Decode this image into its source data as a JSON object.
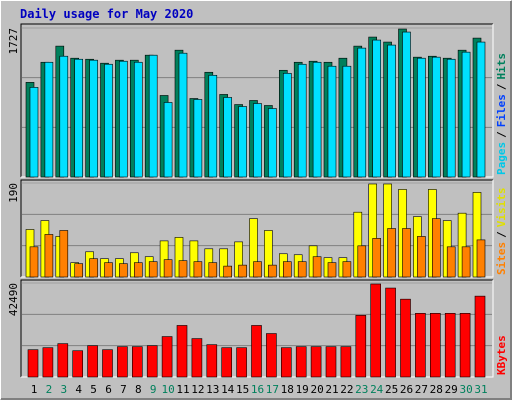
{
  "title": "Daily usage for May 2020",
  "legend_separator": "/",
  "chart_data": [
    {
      "type": "bar",
      "ylim": [
        0,
        1727
      ],
      "yticks": [
        1727
      ],
      "legend": [
        {
          "name": "Pages",
          "color": "#00c8e8"
        },
        {
          "name": "Files",
          "color": "#0040ff"
        },
        {
          "name": "Hits",
          "color": "#00805c"
        }
      ],
      "series": [
        {
          "name": "Hits",
          "color": "#00805c",
          "values": [
            1097,
            1330,
            1517,
            1377,
            1365,
            1319,
            1354,
            1354,
            1412,
            945,
            1470,
            910,
            1214,
            957,
            840,
            887,
            829,
            1237,
            1330,
            1342,
            1330,
            1377,
            1517,
            1622,
            1564,
            1715,
            1389,
            1400,
            1377,
            1470,
            1610
          ]
        },
        {
          "name": "Pages",
          "color": "#00e0ff",
          "values": [
            1039,
            1330,
            1400,
            1365,
            1354,
            1307,
            1342,
            1330,
            1412,
            864,
            1435,
            899,
            1179,
            922,
            817,
            852,
            794,
            1202,
            1307,
            1330,
            1284,
            1284,
            1494,
            1587,
            1529,
            1680,
            1377,
            1389,
            1365,
            1447,
            1564
          ]
        }
      ]
    },
    {
      "type": "bar",
      "ylim": [
        0,
        190
      ],
      "yticks": [
        190
      ],
      "legend": [
        {
          "name": "Sites",
          "color": "#ff8000"
        },
        {
          "name": "Visits",
          "color": "#e0e000"
        }
      ],
      "series": [
        {
          "name": "Visits",
          "color": "#ffff00",
          "values": [
            96,
            114,
            82,
            29,
            51,
            37,
            37,
            49,
            41,
            73,
            80,
            73,
            57,
            57,
            71,
            118,
            94,
            47,
            45,
            63,
            39,
            39,
            131,
            188,
            188,
            177,
            122,
            177,
            114,
            129,
            171
          ]
        },
        {
          "name": "Sites",
          "color": "#ff8000",
          "values": [
            61,
            86,
            94,
            27,
            37,
            29,
            27,
            29,
            31,
            35,
            33,
            31,
            29,
            22,
            24,
            31,
            24,
            31,
            31,
            41,
            29,
            31,
            63,
            78,
            98,
            98,
            82,
            118,
            61,
            61,
            75
          ]
        }
      ]
    },
    {
      "type": "bar",
      "ylim": [
        0,
        42490
      ],
      "yticks": [
        42490
      ],
      "legend": [
        {
          "name": "KBytes",
          "color": "#ff0000"
        }
      ],
      "categories": [
        "1",
        "2",
        "3",
        "4",
        "5",
        "6",
        "7",
        "8",
        "9",
        "10",
        "11",
        "12",
        "13",
        "14",
        "15",
        "16",
        "17",
        "18",
        "19",
        "20",
        "21",
        "22",
        "23",
        "24",
        "25",
        "26",
        "27",
        "28",
        "29",
        "30",
        "31"
      ],
      "category_colors": [
        "#000000",
        "#00805c",
        "#00805c",
        "#000000",
        "#000000",
        "#000000",
        "#000000",
        "#000000",
        "#00805c",
        "#00805c",
        "#000000",
        "#000000",
        "#000000",
        "#000000",
        "#000000",
        "#00805c",
        "#00805c",
        "#000000",
        "#000000",
        "#000000",
        "#000000",
        "#000000",
        "#00805c",
        "#00805c",
        "#000000",
        "#000000",
        "#000000",
        "#000000",
        "#000000",
        "#00805c",
        "#00805c"
      ],
      "series": [
        {
          "name": "KBytes",
          "color": "#ff0000",
          "values": [
            12336,
            13250,
            15078,
            11879,
            14164,
            12336,
            13707,
            13707,
            14164,
            18276,
            23302,
            17362,
            14621,
            13250,
            13250,
            23302,
            19647,
            13250,
            13707,
            13707,
            13707,
            13707,
            27871,
            42035,
            40207,
            35181,
            28785,
            28785,
            28785,
            28785,
            36552
          ]
        }
      ]
    }
  ]
}
